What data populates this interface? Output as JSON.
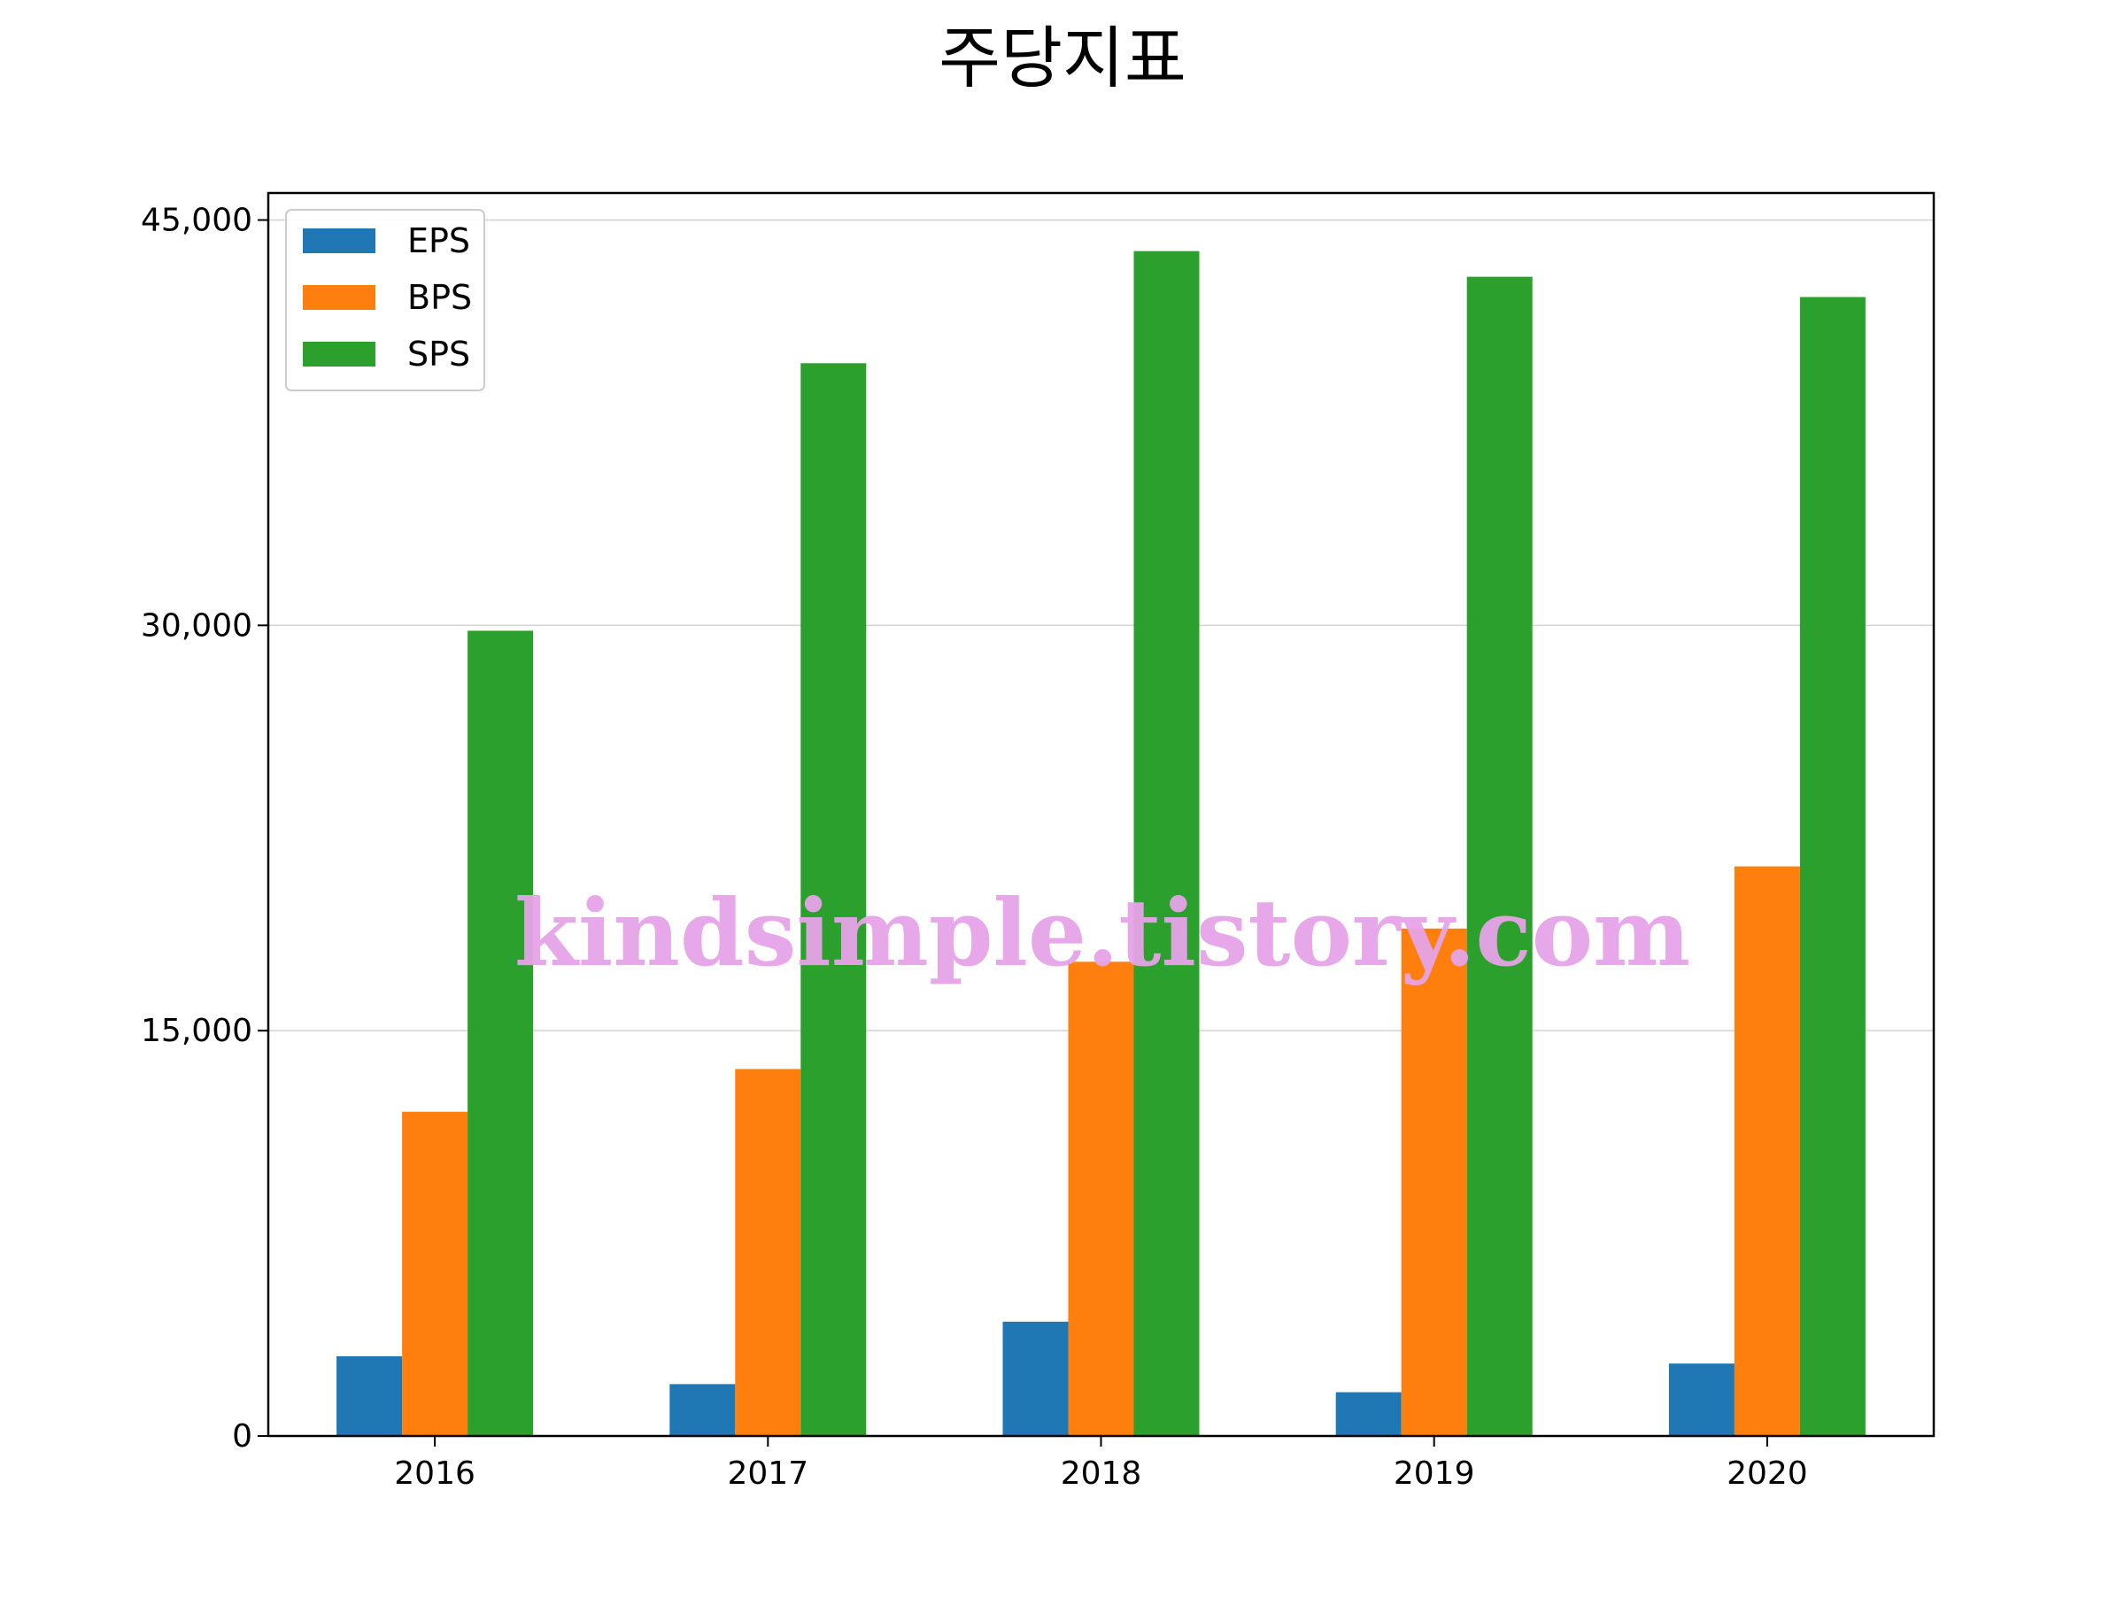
{
  "chart_data": {
    "type": "bar",
    "title": "주당지표",
    "xlabel": "",
    "ylabel": "",
    "categories": [
      "2016",
      "2017",
      "2018",
      "2019",
      "2020"
    ],
    "series": [
      {
        "name": "EPS",
        "color": "#1f77b4",
        "values": [
          2950,
          1920,
          4230,
          1620,
          2680
        ]
      },
      {
        "name": "BPS",
        "color": "#ff7f0e",
        "values": [
          12000,
          13580,
          17550,
          18780,
          21080
        ]
      },
      {
        "name": "SPS",
        "color": "#2ca02c",
        "values": [
          29800,
          39700,
          43850,
          42900,
          42150
        ]
      }
    ],
    "ylim": [
      0,
      46000
    ],
    "yticks": [
      0,
      15000,
      30000,
      45000
    ],
    "ytick_labels": [
      "0",
      "15,000",
      "30,000",
      "45,000"
    ],
    "grid": "horizontal",
    "legend_position": "top-left",
    "watermark": "kindsimple.tistory.com",
    "watermark_color": "#e6a4e8"
  }
}
